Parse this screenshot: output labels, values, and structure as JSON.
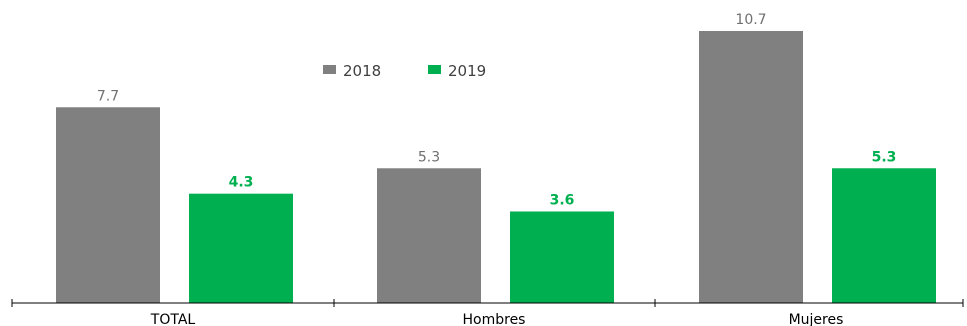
{
  "chart_data": {
    "type": "bar",
    "title": "",
    "xlabel": "",
    "ylabel": "",
    "categories": [
      "TOTAL",
      "Hombres",
      "Mujeres"
    ],
    "series": [
      {
        "name": "2018",
        "values": [
          7.7,
          5.3,
          10.7
        ],
        "color": "#808080",
        "label_color": "#707070"
      },
      {
        "name": "2019",
        "values": [
          4.3,
          3.6,
          5.3
        ],
        "color": "#00b050",
        "label_color": "#00b050"
      }
    ],
    "data_labels": [
      [
        "7.7",
        "5.3",
        "10.7"
      ],
      [
        "4.3",
        "3.6",
        "5.3"
      ]
    ],
    "ylim": [
      0,
      10.7
    ],
    "grid": false,
    "legend_position": "top-center"
  }
}
